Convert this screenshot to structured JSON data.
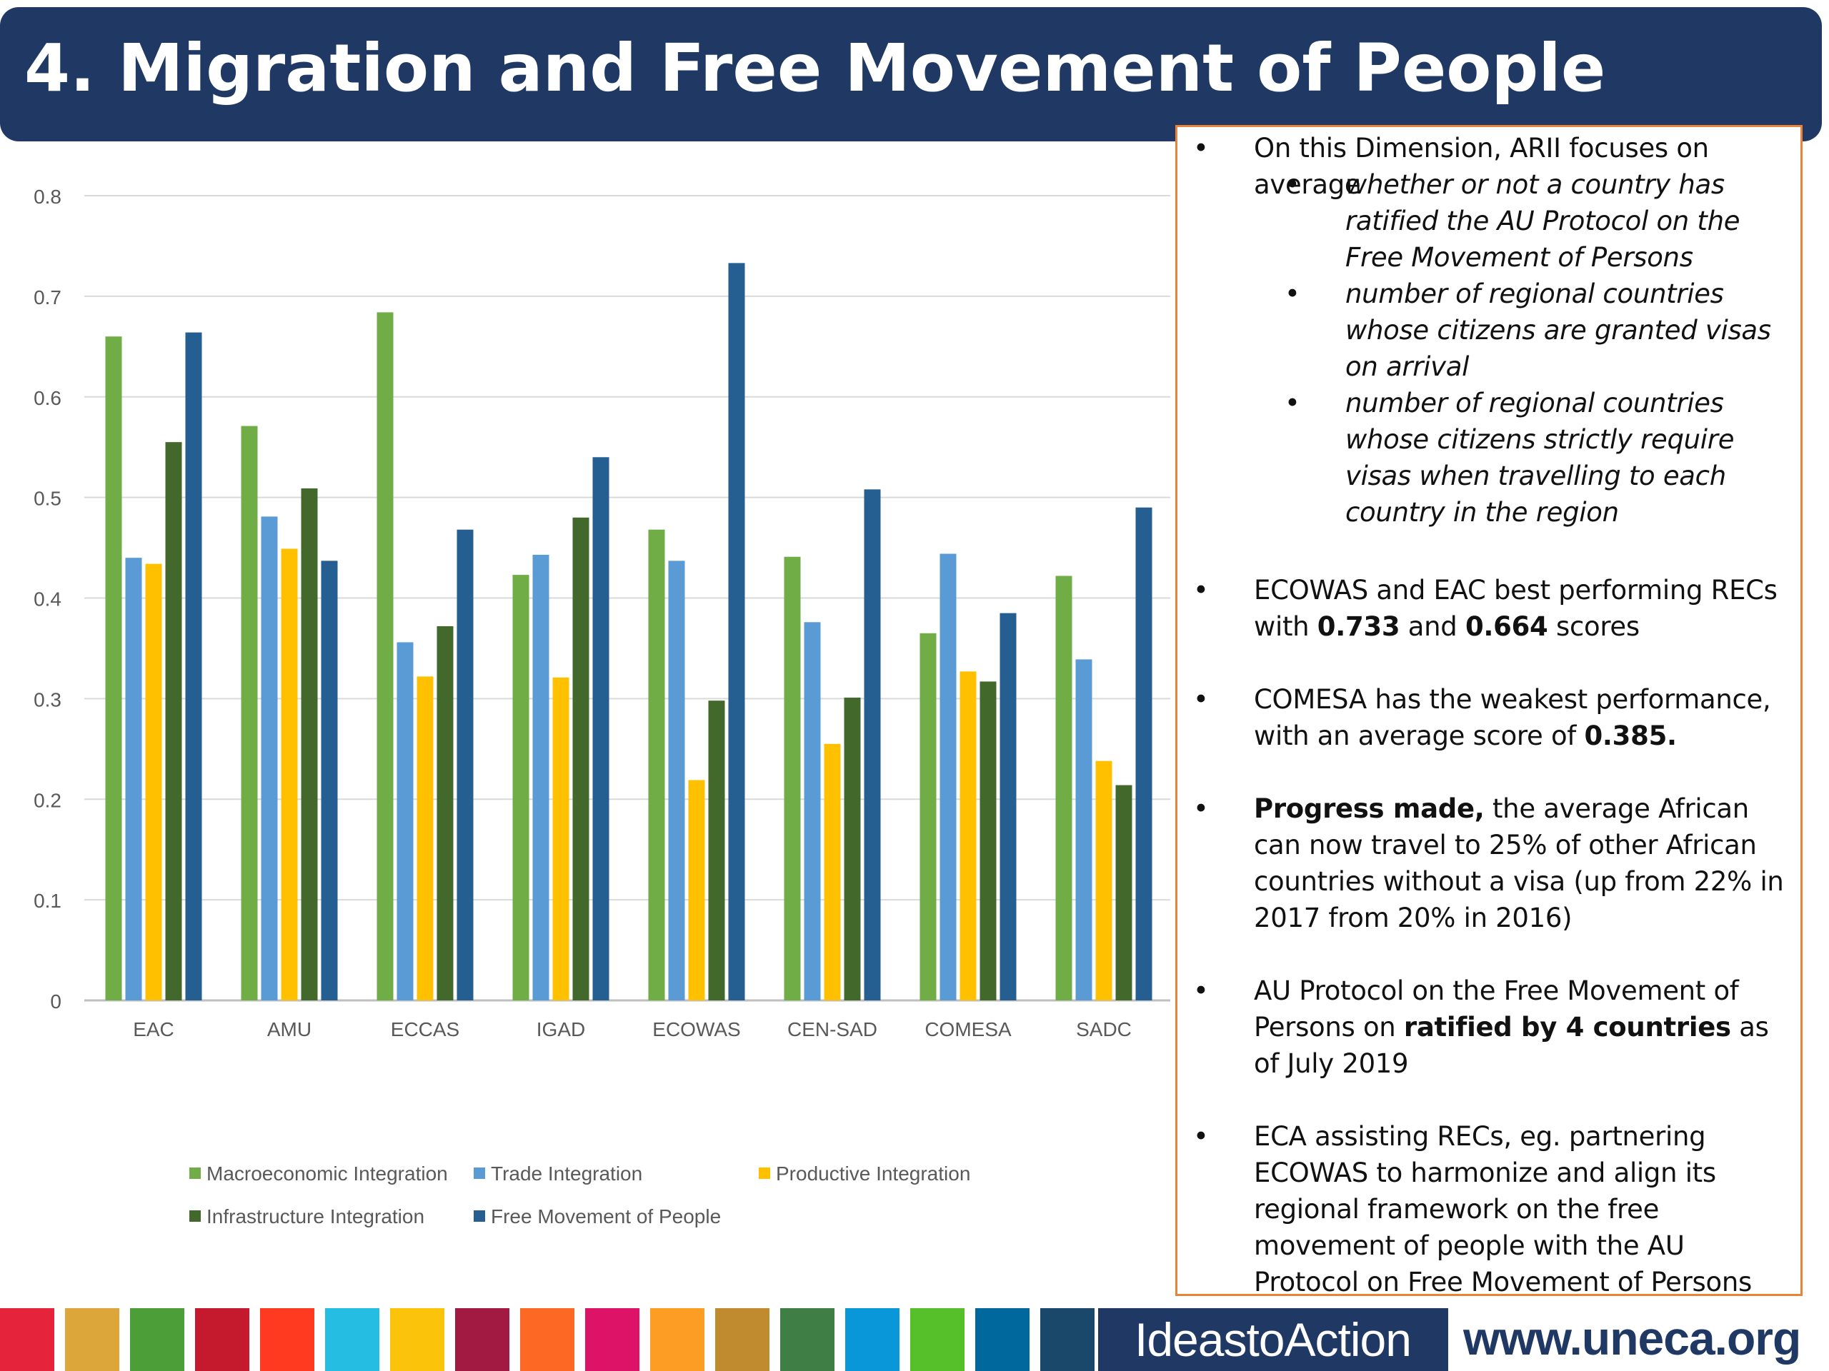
{
  "title": "4. Migration and Free Movement of People",
  "chart_data": {
    "type": "bar",
    "categories": [
      "EAC",
      "AMU",
      "ECCAS",
      "IGAD",
      "ECOWAS",
      "CEN-SAD",
      "COMESA",
      "SADC"
    ],
    "series": [
      {
        "name": "Macroeconomic Integration",
        "color": "#70ad47",
        "values": [
          0.66,
          0.571,
          0.684,
          0.423,
          0.468,
          0.441,
          0.365,
          0.422
        ]
      },
      {
        "name": "Trade Integration",
        "color": "#5b9bd5",
        "values": [
          0.44,
          0.481,
          0.356,
          0.443,
          0.437,
          0.376,
          0.444,
          0.339
        ]
      },
      {
        "name": "Productive Integration",
        "color": "#ffc000",
        "values": [
          0.434,
          0.449,
          0.322,
          0.321,
          0.219,
          0.255,
          0.327,
          0.238
        ]
      },
      {
        "name": "Infrastructure Integration",
        "color": "#43682b",
        "values": [
          0.555,
          0.509,
          0.372,
          0.48,
          0.298,
          0.301,
          0.317,
          0.214
        ]
      },
      {
        "name": "Free Movement of People",
        "color": "#255e91",
        "values": [
          0.664,
          0.437,
          0.468,
          0.54,
          0.733,
          0.508,
          0.385,
          0.49
        ]
      }
    ],
    "ylim": [
      0,
      0.8
    ],
    "yticks": [
      "0",
      "0.1",
      "0.2",
      "0.3",
      "0.4",
      "0.5",
      "0.6",
      "0.7",
      "0.8"
    ],
    "grid": true,
    "legend_position": "bottom",
    "legend_rows": [
      [
        "Macroeconomic Integration",
        "Trade Integration",
        "Productive Integration"
      ],
      [
        "Infrastructure Integration",
        "Free Movement of People"
      ]
    ]
  },
  "panel": {
    "b1": {
      "text": "On this Dimension, ARII focuses on average"
    },
    "sub1": "whether or not a country has ratified the AU Protocol on the Free Movement of Persons",
    "sub2": "number of regional countries whose citizens are granted visas on arrival",
    "sub3": "number of regional countries whose citizens strictly require visas when travelling to each country in the region",
    "b2": {
      "pre": "ECOWAS and EAC best performing RECs with ",
      "bold1": "0.733",
      "mid": " and ",
      "bold2": "0.664",
      "post": " scores"
    },
    "b3": {
      "pre": "COMESA has the weakest performance, with an average score of ",
      "bold": "0.385."
    },
    "b4": {
      "bold": "Progress made,",
      "post": " the average African can now travel to 25% of other African countries without a visa (up from 22% in 2017 from 20% in 2016)"
    },
    "b5": {
      "pre": "AU Protocol on the Free Movement of Persons on ",
      "bold": "ratified by 4 countries",
      "post": " as of July 2019"
    },
    "b6": {
      "text": "ECA assisting RECs, eg. partnering ECOWAS to harmonize and align its regional framework on the free movement of people with the AU  Protocol on Free Movement of Persons"
    },
    "bullet_char": "•"
  },
  "footer": {
    "ideas_label": "IdeastoAction",
    "url": "www.uneca.org",
    "sdg_colors": [
      "#e5243b",
      "#dda63a",
      "#4c9f38",
      "#c5192d",
      "#ff3a21",
      "#26bde2",
      "#fcc30b",
      "#a21942",
      "#fd6925",
      "#dd1367",
      "#fd9d24",
      "#bf8b2e",
      "#3f7e44",
      "#0a97d9",
      "#56c02b",
      "#00689d",
      "#19486a"
    ]
  }
}
